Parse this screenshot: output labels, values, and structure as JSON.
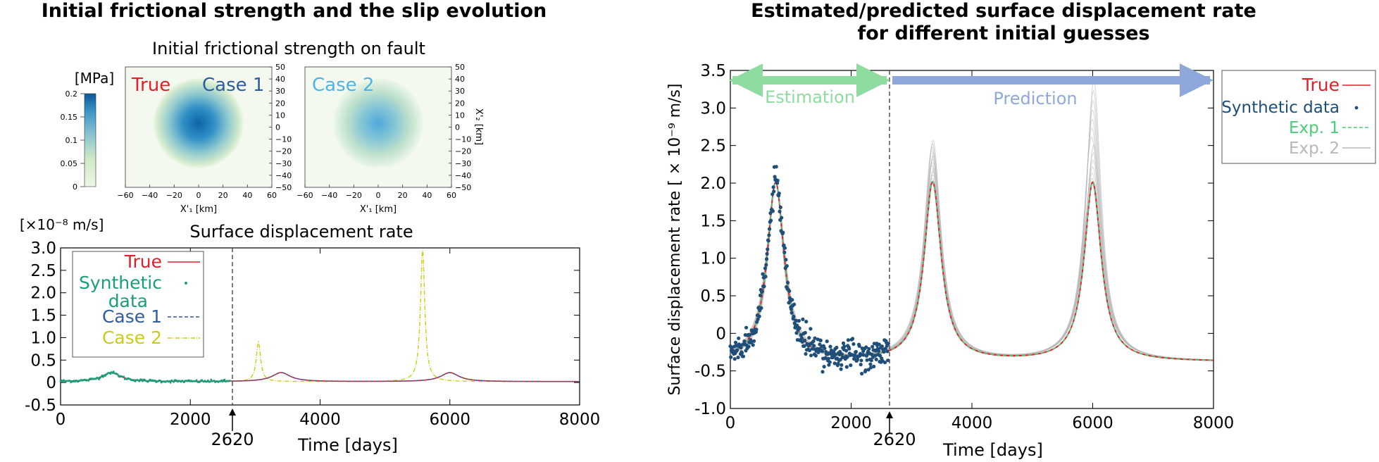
{
  "left_panel": {
    "title": "Initial frictional strength and the slip evolution",
    "heatmap_title": "Initial frictional strength on fault",
    "colorbar_label": "[MPa]",
    "heat_labels": {
      "true": "True",
      "case1": "Case 1",
      "case2": "Case 2"
    },
    "x_axis_label": "X'₁ [km]",
    "y_axis_label": "X'₂ [km]",
    "colors": {
      "true": "#e0202a",
      "case1": "#2f5d9c",
      "case2": "#52b3e0",
      "synthetic": "#1a9e77",
      "case2_line": "#c8cc18",
      "low": "#e6f2dc",
      "mid": "#4aa8c9",
      "high": "#0f5f9e"
    }
  },
  "right_panel": {
    "title_line1": "Estimated/predicted surface displacement rate",
    "title_line2": "for different initial guesses",
    "estimation_label": "Estimation",
    "prediction_label": "Prediction",
    "colors": {
      "true": "#e0202a",
      "synthetic": "#1f4e79",
      "exp1": "#4ccd78",
      "exp2": "#b8b8b8",
      "estimation_arrow": "#8fdca0",
      "prediction_arrow": "#8ea8dc"
    }
  },
  "chart_data": [
    {
      "type": "heatmap",
      "title": "Initial frictional strength on fault",
      "colorbar": {
        "label": "[MPa]",
        "range": [
          0,
          0.2
        ],
        "ticks": [
          "0.2",
          "0.15",
          "0.1",
          "0.05",
          "0"
        ]
      },
      "xticks": [
        "−60",
        "−40",
        "−20",
        "0",
        "20",
        "40",
        "60"
      ],
      "yticks": [
        "50",
        "40",
        "30",
        "20",
        "10",
        "0",
        "−10",
        "−20",
        "−30",
        "−40",
        "−50"
      ],
      "xlabel": "X'₁ [km]",
      "ylabel": "X'₂ [km]",
      "panels": [
        {
          "labels": [
            "True",
            "Case 1"
          ],
          "peak": 0.2,
          "radius_km": 40
        },
        {
          "labels": [
            "Case 2"
          ],
          "peak": 0.1,
          "radius_km": 40
        }
      ]
    },
    {
      "type": "line",
      "title": "Surface displacement rate",
      "unit_label": "[×10⁻⁸ m/s]",
      "xlabel": "Time [days]",
      "xlim": [
        0,
        8000
      ],
      "ylim": [
        -0.5,
        3.0
      ],
      "xticks": [
        "0",
        "2000",
        "4000",
        "6000",
        "8000"
      ],
      "yticks": [
        "3.0",
        "2.5",
        "2.0",
        "1.5",
        "1.0",
        "0.5",
        "0",
        "-0.5"
      ],
      "marker_label": "2620",
      "marker_x": 2620,
      "legend": [
        "True",
        "Synthetic data",
        "Case 1",
        "Case 2"
      ],
      "series": [
        {
          "name": "True",
          "peaks": [
            [
              780,
              0.22
            ],
            [
              3400,
              0.22
            ],
            [
              6000,
              0.22
            ]
          ]
        },
        {
          "name": "Synthetic data",
          "range": [
            0,
            2620
          ]
        },
        {
          "name": "Case 1",
          "peaks": [
            [
              780,
              0.22
            ],
            [
              3400,
              0.22
            ],
            [
              6000,
              0.22
            ]
          ]
        },
        {
          "name": "Case 2",
          "peaks": [
            [
              780,
              0.22
            ],
            [
              3050,
              0.9
            ],
            [
              5580,
              2.95
            ]
          ]
        }
      ]
    },
    {
      "type": "line",
      "title": "Estimated/predicted surface displacement rate for different initial guesses",
      "xlabel": "Time [days]",
      "ylabel": "Surface displacement rate [ × 10⁻⁹ m/s]",
      "xlim": [
        0,
        8000
      ],
      "ylim": [
        -1.0,
        3.5
      ],
      "xticks": [
        "0",
        "2000",
        "4000",
        "6000",
        "8000"
      ],
      "yticks": [
        "3.5",
        "3.0",
        "2.5",
        "2.0",
        "1.5",
        "1.0",
        "0.5",
        "0",
        "-0.5",
        "-1.0"
      ],
      "marker_label": "2620",
      "marker_x": 2620,
      "legend": [
        "True",
        "Synthetic data",
        "Exp. 1",
        "Exp. 2"
      ],
      "series": [
        {
          "name": "True",
          "peaks": [
            [
              750,
              2.0
            ],
            [
              3350,
              2.0
            ],
            [
              6000,
              2.0
            ]
          ]
        },
        {
          "name": "Synthetic data",
          "range": [
            0,
            2620
          ]
        },
        {
          "name": "Exp. 1",
          "peaks": [
            [
              750,
              2.0
            ],
            [
              3350,
              2.0
            ],
            [
              6000,
              2.0
            ]
          ]
        },
        {
          "name": "Exp. 2",
          "peaks": [
            [
              3350,
              2.75
            ],
            [
              6000,
              3.35
            ]
          ]
        }
      ]
    }
  ]
}
